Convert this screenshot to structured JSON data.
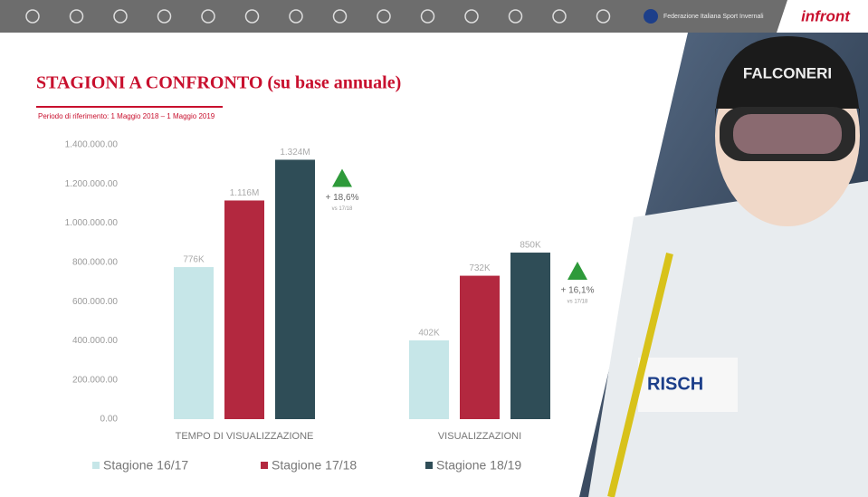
{
  "header": {
    "federation": "Federazione Italiana Sport Invernali",
    "logo": "infront"
  },
  "chart_data": {
    "type": "bar",
    "title": "STAGIONI A CONFRONTO (su base annuale)",
    "subtitle": "Periodo di riferimento: 1 Maggio 2018 – 1 Maggio 2019",
    "categories": [
      "TEMPO DI VISUALIZZAZIONE",
      "VISUALIZZAZIONI"
    ],
    "series": [
      {
        "name": "Stagione 16/17",
        "color": "#c6e6e8",
        "values": [
          776000,
          402000
        ],
        "value_labels": [
          "776K",
          "402K"
        ]
      },
      {
        "name": "Stagione 17/18",
        "color": "#b3283f",
        "values": [
          1116000,
          732000
        ],
        "value_labels": [
          "1.116M",
          "732K"
        ]
      },
      {
        "name": "Stagione 18/19",
        "color": "#2f4d57",
        "values": [
          1324000,
          850000
        ],
        "value_labels": [
          "1.324M",
          "850K"
        ]
      }
    ],
    "ylim": [
      0,
      1400000
    ],
    "yticks": [
      {
        "value": 0,
        "label": "0.00"
      },
      {
        "value": 200000,
        "label": "200.000.00"
      },
      {
        "value": 400000,
        "label": "400.000.00"
      },
      {
        "value": 600000,
        "label": "600.000.00"
      },
      {
        "value": 800000,
        "label": "800.000.00"
      },
      {
        "value": 1000000,
        "label": "1.000.000.00"
      },
      {
        "value": 1200000,
        "label": "1.200.000.00"
      },
      {
        "value": 1400000,
        "label": "1.400.000.00"
      }
    ],
    "annotations": [
      {
        "text": "+ 18,6%",
        "note": "vs 17/18"
      },
      {
        "text": "+ 16,1%",
        "note": "vs 17/18"
      }
    ],
    "grid": false,
    "legend": "bottom"
  }
}
